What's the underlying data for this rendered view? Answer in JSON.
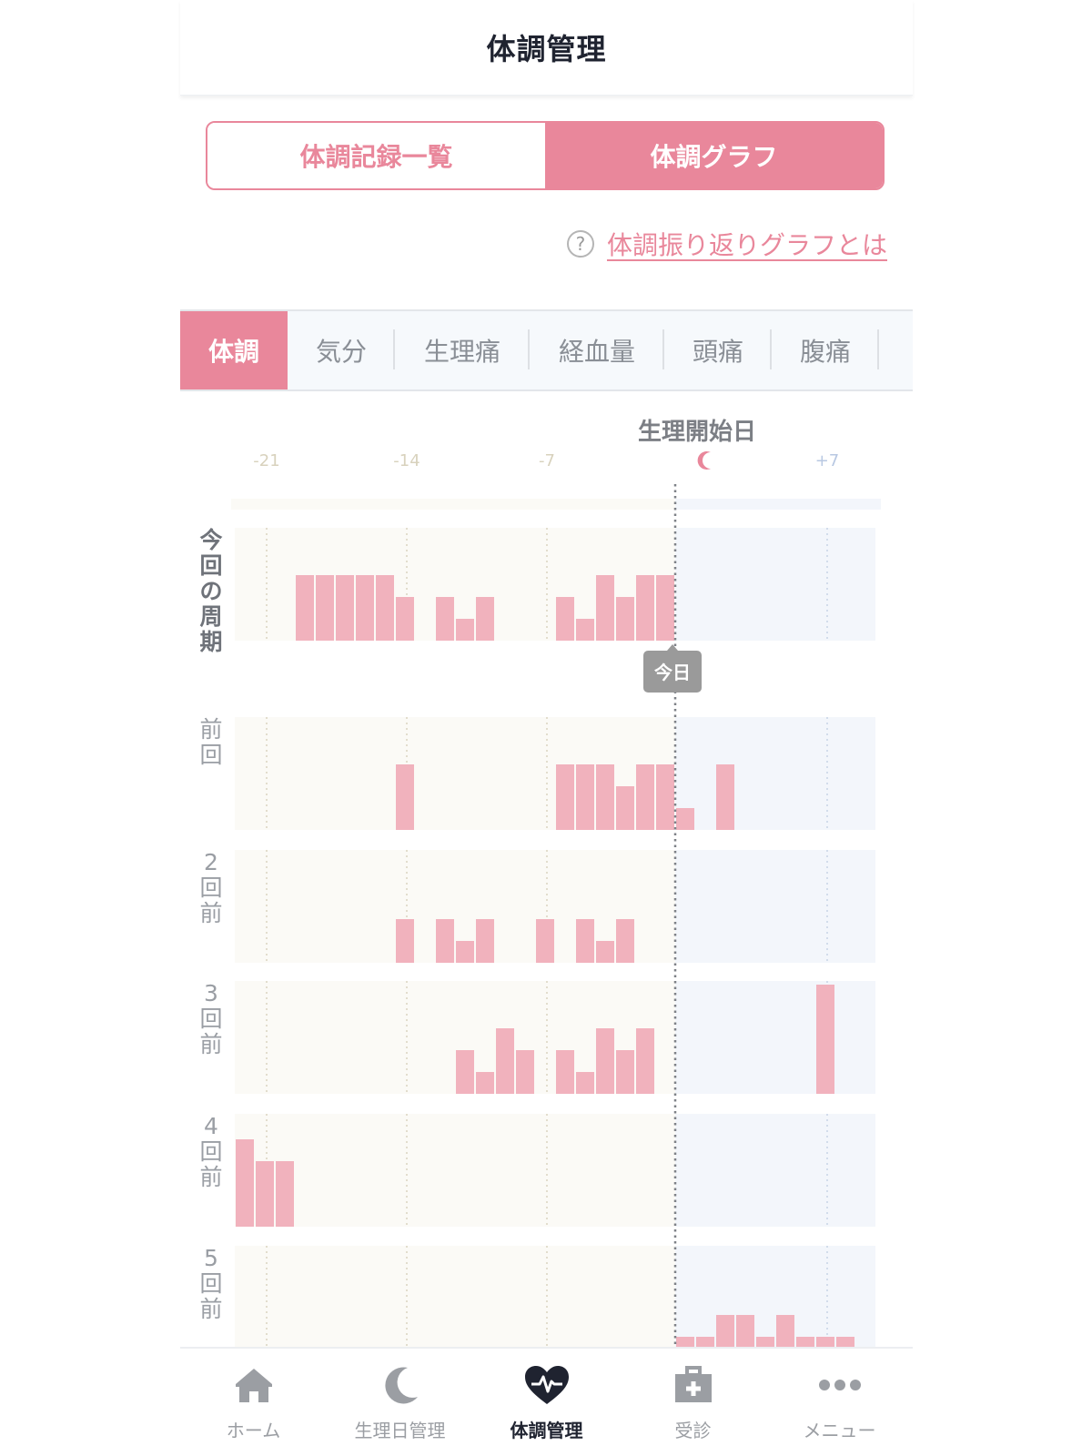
{
  "header": {
    "title": "体調管理"
  },
  "segment": {
    "list_label": "体調記録一覧",
    "graph_label": "体調グラフ",
    "active": "graph"
  },
  "help": {
    "icon": "question-circle-icon",
    "text": "体調振り返りグラフとは"
  },
  "categories": [
    "体調",
    "気分",
    "生理痛",
    "経血量",
    "頭痛",
    "腹痛"
  ],
  "active_category": "体調",
  "chart_data": {
    "type": "bar",
    "title": "",
    "start_label": "生理開始日",
    "start_marker_icon": "moon-icon",
    "x_ticks": [
      "-21",
      "-14",
      "-7",
      "+7"
    ],
    "x_tick_values": [
      -21,
      -14,
      -7,
      7
    ],
    "x_range": [
      -22,
      9
    ],
    "today_label": "今日",
    "today_offset": 0,
    "colors": {
      "bar": "#f1b2bd",
      "before_bg": "#fbfaf6",
      "after_bg": "#f3f6fb",
      "before_tick": "#d8d2bd",
      "after_tick": "#b8c8e2"
    },
    "y_max": 3,
    "series": [
      {
        "name": "今回の周期",
        "values": [
          {
            "x": -19,
            "y": 3
          },
          {
            "x": -18,
            "y": 3
          },
          {
            "x": -17,
            "y": 3
          },
          {
            "x": -16,
            "y": 3
          },
          {
            "x": -15,
            "y": 3
          },
          {
            "x": -14,
            "y": 2
          },
          {
            "x": -12,
            "y": 2
          },
          {
            "x": -11,
            "y": 1
          },
          {
            "x": -10,
            "y": 2
          },
          {
            "x": -6,
            "y": 2
          },
          {
            "x": -5,
            "y": 1
          },
          {
            "x": -4,
            "y": 3
          },
          {
            "x": -3,
            "y": 2
          },
          {
            "x": -2,
            "y": 3
          },
          {
            "x": -1,
            "y": 3
          }
        ]
      },
      {
        "name": "前回",
        "values": [
          {
            "x": -14,
            "y": 3
          },
          {
            "x": -6,
            "y": 3
          },
          {
            "x": -5,
            "y": 3
          },
          {
            "x": -4,
            "y": 3
          },
          {
            "x": -3,
            "y": 2
          },
          {
            "x": -2,
            "y": 3
          },
          {
            "x": -1,
            "y": 3
          },
          {
            "x": 0,
            "y": 1
          },
          {
            "x": 2,
            "y": 3
          }
        ]
      },
      {
        "name": "2回前",
        "values": [
          {
            "x": -14,
            "y": 2
          },
          {
            "x": -12,
            "y": 2
          },
          {
            "x": -11,
            "y": 1
          },
          {
            "x": -10,
            "y": 2
          },
          {
            "x": -7,
            "y": 2
          },
          {
            "x": -5,
            "y": 2
          },
          {
            "x": -4,
            "y": 1
          },
          {
            "x": -3,
            "y": 2
          }
        ]
      },
      {
        "name": "3回前",
        "values": [
          {
            "x": -11,
            "y": 2
          },
          {
            "x": -10,
            "y": 1
          },
          {
            "x": -9,
            "y": 3
          },
          {
            "x": -8,
            "y": 2
          },
          {
            "x": -6,
            "y": 2
          },
          {
            "x": -5,
            "y": 1
          },
          {
            "x": -4,
            "y": 3
          },
          {
            "x": -3,
            "y": 2
          },
          {
            "x": -2,
            "y": 3
          },
          {
            "x": 7,
            "y": 5
          }
        ]
      },
      {
        "name": "4回前",
        "values": [
          {
            "x": -22,
            "y": 4
          },
          {
            "x": -21,
            "y": 3
          },
          {
            "x": -20,
            "y": 3
          }
        ]
      },
      {
        "name": "5回前",
        "values": [
          {
            "x": 0,
            "y": 1
          },
          {
            "x": 1,
            "y": 1
          },
          {
            "x": 2,
            "y": 2
          },
          {
            "x": 3,
            "y": 2
          },
          {
            "x": 4,
            "y": 1
          },
          {
            "x": 5,
            "y": 2
          },
          {
            "x": 6,
            "y": 1
          },
          {
            "x": 7,
            "y": 1
          },
          {
            "x": 8,
            "y": 1
          }
        ]
      }
    ]
  },
  "nav": {
    "items": [
      {
        "label": "ホーム",
        "icon": "home-icon"
      },
      {
        "label": "生理日管理",
        "icon": "moon-icon"
      },
      {
        "label": "体調管理",
        "icon": "heart-pulse-icon"
      },
      {
        "label": "受診",
        "icon": "medical-kit-icon"
      },
      {
        "label": "メニュー",
        "icon": "more-dots-icon"
      }
    ],
    "active": 2
  }
}
